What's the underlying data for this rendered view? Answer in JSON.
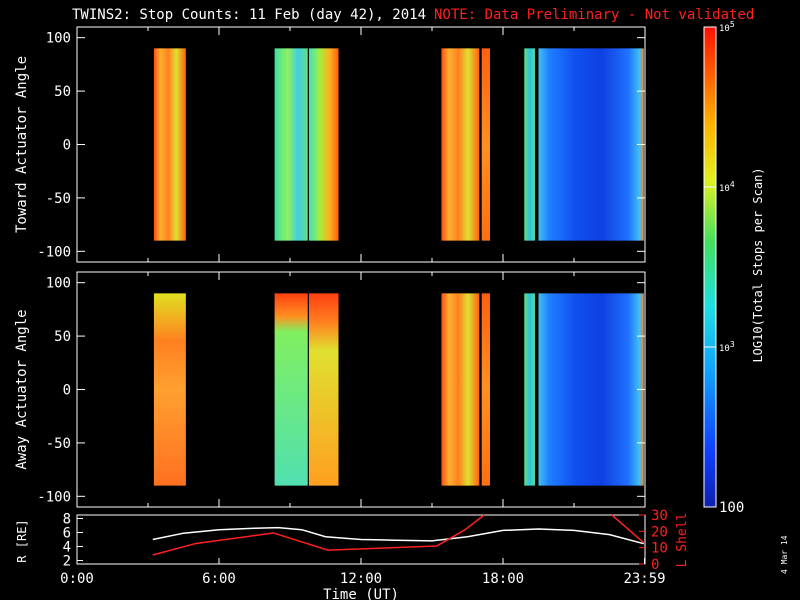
{
  "title": {
    "main": "TWINS2: Stop Counts: 11 Feb (day  42), 2014",
    "note": "NOTE: Data Preliminary - Not validated",
    "note_color": "#ff2020"
  },
  "stamp": "4 Mar 14",
  "chart_data": [
    {
      "type": "heatmap",
      "ylabel": "Toward Actuator Angle",
      "ylim": [
        -110,
        110
      ],
      "yticks": [
        "100",
        "50",
        "0",
        "-50",
        "-100"
      ],
      "ytick_values": [
        100,
        50,
        0,
        -50,
        -100
      ],
      "xlim_hours": [
        0,
        24
      ],
      "data_y_range": [
        -90,
        90
      ],
      "blocks": [
        {
          "start": 3.25,
          "end": 4.6,
          "style": "stripe-warm",
          "mean_log10": 4.6
        },
        {
          "start": 8.35,
          "end": 9.75,
          "style": "cool-green",
          "mean_log10": 3.9
        },
        {
          "start": 9.8,
          "end": 11.05,
          "style": "green-orange",
          "mean_log10": 4.0
        },
        {
          "start": 15.4,
          "end": 17.0,
          "style": "stripe-warm",
          "mean_log10": 4.4
        },
        {
          "start": 17.1,
          "end": 17.45,
          "style": "warm",
          "mean_log10": 4.6
        },
        {
          "start": 18.9,
          "end": 19.35,
          "style": "green",
          "mean_log10": 3.7
        },
        {
          "start": 19.5,
          "end": 23.95,
          "style": "blue",
          "mean_log10": 2.7
        }
      ]
    },
    {
      "type": "heatmap",
      "ylabel": "Away Actuator Angle",
      "ylim": [
        -110,
        110
      ],
      "yticks": [
        "100",
        "50",
        "0",
        "-50",
        "-100"
      ],
      "ytick_values": [
        100,
        50,
        0,
        -50,
        -100
      ],
      "xlim_hours": [
        0,
        24
      ],
      "data_y_range": [
        -90,
        90
      ],
      "blocks": [
        {
          "start": 3.25,
          "end": 4.6,
          "style": "warm-top-stripe",
          "mean_log10": 4.6
        },
        {
          "start": 8.35,
          "end": 9.75,
          "style": "cool-green-redtop",
          "mean_log10": 3.9
        },
        {
          "start": 9.8,
          "end": 11.05,
          "style": "green-orange-redtop",
          "mean_log10": 4.0
        },
        {
          "start": 15.4,
          "end": 17.0,
          "style": "stripe-warm",
          "mean_log10": 4.4
        },
        {
          "start": 17.1,
          "end": 17.45,
          "style": "warm",
          "mean_log10": 4.6
        },
        {
          "start": 18.9,
          "end": 19.35,
          "style": "green",
          "mean_log10": 3.7
        },
        {
          "start": 19.5,
          "end": 23.95,
          "style": "blue",
          "mean_log10": 2.7
        }
      ]
    },
    {
      "type": "line",
      "xlabel": "Time (UT)",
      "xticks": [
        "0:00",
        "6:00",
        "12:00",
        "18:00",
        "23:59"
      ],
      "xtick_values": [
        0,
        6,
        12,
        18,
        23.98
      ],
      "ylabel_left": "R [RE]",
      "ylim_left": [
        1.5,
        8.5
      ],
      "yticks_left": [
        "2",
        "4",
        "6",
        "8"
      ],
      "ylabel_right": "L Shell",
      "ylim_right": [
        0,
        30
      ],
      "yticks_right": [
        "0",
        "10",
        "20",
        "30"
      ],
      "series": [
        {
          "name": "R",
          "axis": "left",
          "color": "#ffffff",
          "x": [
            3.2,
            4.5,
            6.0,
            7.5,
            8.5,
            9.5,
            10.5,
            12.0,
            13.5,
            15.0,
            16.5,
            18.0,
            19.5,
            21.0,
            22.5,
            23.95
          ],
          "y": [
            5.0,
            5.9,
            6.4,
            6.6,
            6.7,
            6.4,
            5.4,
            5.0,
            4.9,
            4.8,
            5.4,
            6.3,
            6.5,
            6.3,
            5.7,
            4.4
          ]
        },
        {
          "name": "L Shell",
          "axis": "right",
          "color": "#ff2020",
          "x": [
            3.2,
            5.0,
            8.3,
            10.6,
            15.2,
            16.4,
            17.2
          ],
          "y": [
            5.5,
            12.5,
            19.0,
            8.5,
            11.0,
            21.0,
            30.0
          ],
          "x2": [
            22.6,
            23.95
          ],
          "y2": [
            30.0,
            13.0
          ]
        }
      ]
    }
  ],
  "colorbar": {
    "label": "LOG10(Total Stops per Scan)",
    "ticks": [
      "10^5",
      "10^4",
      "10^3",
      "100"
    ],
    "tick_values": [
      5,
      4,
      3,
      2
    ],
    "range": [
      2,
      5
    ]
  }
}
